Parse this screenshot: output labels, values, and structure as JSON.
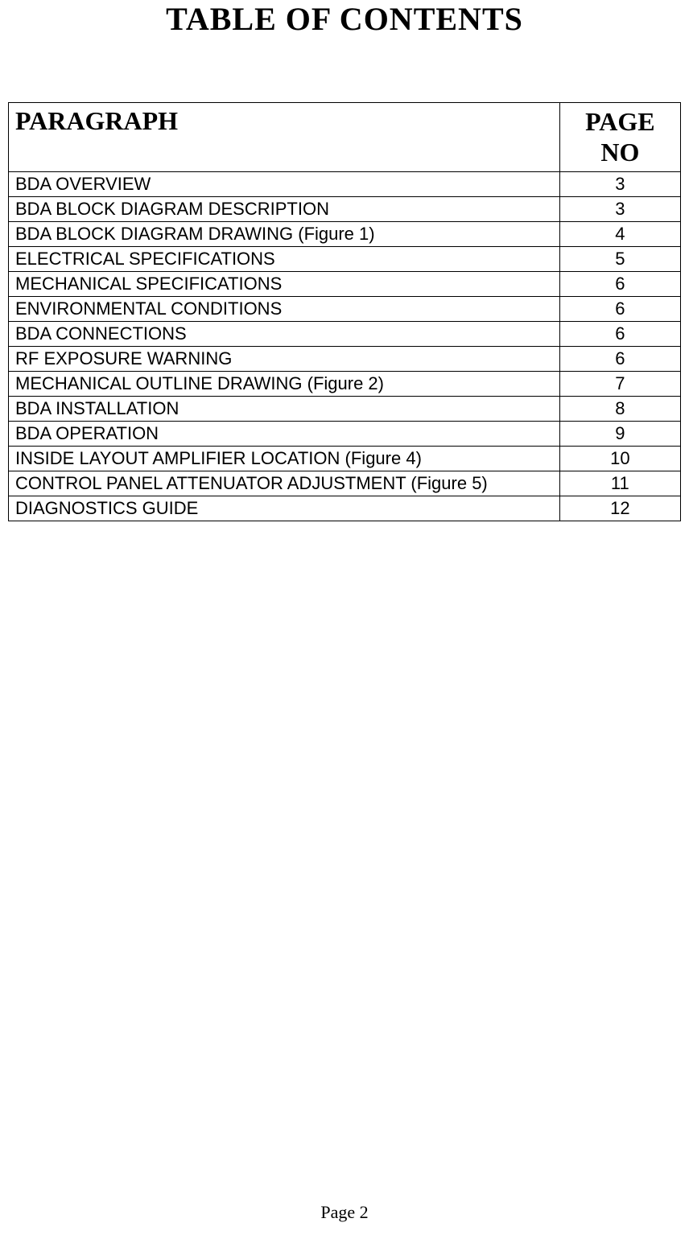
{
  "title": "TABLE OF CONTENTS",
  "table": {
    "columns": [
      "PARAGRAPH",
      "PAGE NO"
    ],
    "rows": [
      {
        "paragraph": "BDA OVERVIEW",
        "page": "3"
      },
      {
        "paragraph": "BDA BLOCK DIAGRAM DESCRIPTION",
        "page": "3"
      },
      {
        "paragraph": "BDA BLOCK DIAGRAM DRAWING (Figure 1)",
        "page": "4"
      },
      {
        "paragraph": "ELECTRICAL SPECIFICATIONS",
        "page": "5"
      },
      {
        "paragraph": "MECHANICAL SPECIFICATIONS",
        "page": "6"
      },
      {
        "paragraph": "ENVIRONMENTAL CONDITIONS",
        "page": "6"
      },
      {
        "paragraph": "BDA CONNECTIONS",
        "page": "6"
      },
      {
        "paragraph": "RF EXPOSURE WARNING",
        "page": "6"
      },
      {
        "paragraph": "MECHANICAL OUTLINE DRAWING (Figure 2)",
        "page": "7"
      },
      {
        "paragraph": "BDA INSTALLATION",
        "page": "8"
      },
      {
        "paragraph": "BDA OPERATION",
        "page": "9"
      },
      {
        "paragraph": "INSIDE LAYOUT AMPLIFIER LOCATION (Figure 4)",
        "page": "10"
      },
      {
        "paragraph": "CONTROL PANEL ATTENUATOR ADJUSTMENT (Figure 5)",
        "page": "11"
      },
      {
        "paragraph": "DIAGNOSTICS GUIDE",
        "page": "12"
      }
    ]
  },
  "footer": "Page 2",
  "colors": {
    "background": "#ffffff",
    "text": "#000000",
    "border": "#000000"
  },
  "typography": {
    "title_fontsize": 40,
    "header_fontsize": 32,
    "body_fontsize": 22,
    "footer_fontsize": 22,
    "title_font": "Times New Roman",
    "header_font": "Times New Roman",
    "body_font": "Arial"
  }
}
